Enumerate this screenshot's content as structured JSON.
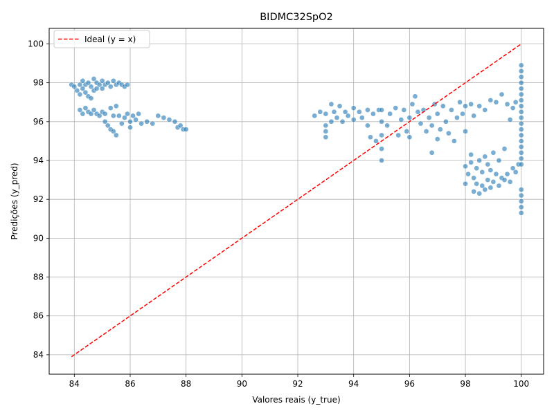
{
  "chart_data": {
    "type": "scatter",
    "title": "BIDMC32SpO2",
    "xlabel": "Valores reais (y_true)",
    "ylabel": "Predições (y_pred)",
    "xlim": [
      83.1,
      100.8
    ],
    "ylim": [
      83.0,
      100.8
    ],
    "xticks": [
      84,
      86,
      88,
      90,
      92,
      94,
      96,
      98,
      100
    ],
    "yticks": [
      84,
      86,
      88,
      90,
      92,
      94,
      96,
      98,
      100
    ],
    "grid": true,
    "legend_position": "top-left",
    "colors": {
      "points": "#1f77b4",
      "ideal_line": "#ff0000"
    },
    "series": [
      {
        "kind": "scatter",
        "points": [
          [
            83.9,
            97.9
          ],
          [
            84.0,
            97.8
          ],
          [
            84.1,
            97.6
          ],
          [
            84.2,
            97.9
          ],
          [
            84.2,
            97.4
          ],
          [
            84.3,
            98.1
          ],
          [
            84.3,
            97.7
          ],
          [
            84.4,
            97.5
          ],
          [
            84.4,
            97.9
          ],
          [
            84.5,
            98.0
          ],
          [
            84.5,
            97.3
          ],
          [
            84.6,
            97.8
          ],
          [
            84.6,
            97.2
          ],
          [
            84.7,
            98.2
          ],
          [
            84.7,
            97.6
          ],
          [
            84.8,
            98.0
          ],
          [
            84.8,
            97.7
          ],
          [
            84.9,
            97.9
          ],
          [
            85.0,
            97.7
          ],
          [
            85.0,
            98.1
          ],
          [
            85.1,
            97.9
          ],
          [
            85.2,
            98.0
          ],
          [
            85.3,
            97.8
          ],
          [
            85.4,
            98.1
          ],
          [
            85.5,
            97.9
          ],
          [
            85.6,
            98.0
          ],
          [
            85.7,
            97.9
          ],
          [
            85.8,
            97.8
          ],
          [
            85.9,
            97.9
          ],
          [
            84.2,
            96.6
          ],
          [
            84.3,
            96.4
          ],
          [
            84.4,
            96.7
          ],
          [
            84.5,
            96.5
          ],
          [
            84.6,
            96.4
          ],
          [
            84.7,
            96.6
          ],
          [
            84.8,
            96.4
          ],
          [
            84.9,
            96.3
          ],
          [
            85.0,
            96.5
          ],
          [
            85.1,
            96.4
          ],
          [
            85.1,
            96.0
          ],
          [
            85.2,
            95.8
          ],
          [
            85.3,
            96.7
          ],
          [
            85.3,
            95.6
          ],
          [
            85.4,
            96.3
          ],
          [
            85.4,
            95.5
          ],
          [
            85.5,
            96.8
          ],
          [
            85.5,
            95.3
          ],
          [
            85.6,
            96.3
          ],
          [
            85.7,
            95.9
          ],
          [
            85.8,
            96.2
          ],
          [
            85.9,
            96.4
          ],
          [
            86.0,
            96.0
          ],
          [
            86.0,
            95.7
          ],
          [
            86.1,
            96.3
          ],
          [
            86.2,
            96.1
          ],
          [
            86.3,
            96.4
          ],
          [
            86.4,
            95.9
          ],
          [
            86.6,
            96.0
          ],
          [
            86.8,
            95.9
          ],
          [
            87.0,
            96.3
          ],
          [
            87.2,
            96.2
          ],
          [
            87.4,
            96.1
          ],
          [
            87.6,
            96.0
          ],
          [
            87.7,
            95.7
          ],
          [
            87.8,
            95.8
          ],
          [
            87.9,
            95.6
          ],
          [
            88.0,
            95.6
          ],
          [
            92.6,
            96.3
          ],
          [
            92.8,
            96.5
          ],
          [
            93.0,
            96.4
          ],
          [
            93.0,
            95.2
          ],
          [
            93.0,
            95.5
          ],
          [
            93.0,
            95.8
          ],
          [
            93.2,
            96.9
          ],
          [
            93.2,
            96.0
          ],
          [
            93.3,
            96.5
          ],
          [
            93.4,
            96.2
          ],
          [
            93.5,
            96.8
          ],
          [
            93.6,
            96.0
          ],
          [
            93.7,
            96.5
          ],
          [
            93.8,
            96.3
          ],
          [
            94.0,
            96.7
          ],
          [
            94.0,
            96.1
          ],
          [
            94.2,
            96.5
          ],
          [
            94.3,
            96.2
          ],
          [
            94.5,
            96.6
          ],
          [
            94.5,
            95.8
          ],
          [
            94.6,
            95.2
          ],
          [
            94.7,
            96.4
          ],
          [
            94.8,
            95.0
          ],
          [
            94.9,
            96.6
          ],
          [
            95.0,
            94.0
          ],
          [
            95.0,
            94.6
          ],
          [
            95.0,
            95.3
          ],
          [
            95.0,
            96.0
          ],
          [
            95.0,
            96.6
          ],
          [
            95.2,
            95.8
          ],
          [
            95.3,
            96.4
          ],
          [
            95.5,
            96.7
          ],
          [
            95.6,
            95.3
          ],
          [
            95.7,
            96.1
          ],
          [
            95.8,
            96.6
          ],
          [
            95.9,
            95.5
          ],
          [
            96.0,
            96.2
          ],
          [
            96.0,
            95.2
          ],
          [
            96.1,
            96.9
          ],
          [
            96.2,
            97.3
          ],
          [
            96.3,
            96.5
          ],
          [
            96.4,
            95.9
          ],
          [
            96.5,
            96.6
          ],
          [
            96.6,
            95.5
          ],
          [
            96.7,
            96.2
          ],
          [
            96.8,
            94.4
          ],
          [
            96.8,
            95.8
          ],
          [
            96.9,
            96.9
          ],
          [
            97.0,
            95.1
          ],
          [
            97.0,
            96.4
          ],
          [
            97.1,
            95.6
          ],
          [
            97.2,
            96.8
          ],
          [
            97.3,
            96.0
          ],
          [
            97.4,
            95.4
          ],
          [
            97.5,
            96.6
          ],
          [
            97.6,
            95.0
          ],
          [
            97.7,
            96.2
          ],
          [
            97.8,
            97.0
          ],
          [
            97.9,
            96.4
          ],
          [
            98.0,
            95.5
          ],
          [
            98.0,
            96.8
          ],
          [
            98.2,
            96.9
          ],
          [
            98.3,
            96.3
          ],
          [
            98.5,
            96.8
          ],
          [
            98.7,
            96.6
          ],
          [
            98.9,
            97.1
          ],
          [
            99.1,
            97.0
          ],
          [
            99.3,
            97.4
          ],
          [
            99.5,
            96.9
          ],
          [
            99.6,
            96.1
          ],
          [
            99.7,
            96.7
          ],
          [
            99.8,
            97.0
          ],
          [
            98.0,
            93.7
          ],
          [
            98.0,
            92.8
          ],
          [
            98.1,
            93.3
          ],
          [
            98.2,
            94.3
          ],
          [
            98.2,
            93.9
          ],
          [
            98.3,
            92.4
          ],
          [
            98.3,
            93.1
          ],
          [
            98.4,
            92.8
          ],
          [
            98.4,
            93.6
          ],
          [
            98.5,
            92.3
          ],
          [
            98.5,
            94.0
          ],
          [
            98.6,
            92.7
          ],
          [
            98.6,
            93.4
          ],
          [
            98.7,
            94.2
          ],
          [
            98.7,
            92.5
          ],
          [
            98.8,
            93.8
          ],
          [
            98.8,
            93.0
          ],
          [
            98.9,
            92.6
          ],
          [
            98.9,
            93.5
          ],
          [
            99.0,
            94.4
          ],
          [
            99.0,
            92.9
          ],
          [
            99.1,
            93.3
          ],
          [
            99.2,
            92.7
          ],
          [
            99.2,
            94.0
          ],
          [
            99.3,
            93.1
          ],
          [
            99.4,
            94.6
          ],
          [
            99.4,
            93.0
          ],
          [
            99.5,
            93.3
          ],
          [
            99.6,
            92.9
          ],
          [
            99.7,
            93.6
          ],
          [
            99.8,
            93.4
          ],
          [
            99.9,
            93.8
          ],
          [
            100.0,
            91.3
          ],
          [
            100.0,
            91.6
          ],
          [
            100.0,
            91.9
          ],
          [
            100.0,
            92.2
          ],
          [
            100.0,
            92.5
          ],
          [
            100.0,
            93.8
          ],
          [
            100.0,
            94.1
          ],
          [
            100.0,
            94.4
          ],
          [
            100.0,
            94.7
          ],
          [
            100.0,
            95.0
          ],
          [
            100.0,
            95.3
          ],
          [
            100.0,
            95.6
          ],
          [
            100.0,
            95.9
          ],
          [
            100.0,
            96.2
          ],
          [
            100.0,
            96.5
          ],
          [
            100.0,
            96.8
          ],
          [
            100.0,
            97.1
          ],
          [
            100.0,
            97.4
          ],
          [
            100.0,
            97.7
          ],
          [
            100.0,
            98.0
          ],
          [
            100.0,
            98.3
          ],
          [
            100.0,
            98.6
          ],
          [
            100.0,
            98.9
          ]
        ]
      },
      {
        "kind": "line",
        "name": "Ideal (y = x)",
        "style": "dashed",
        "x": [
          83.9,
          100.0
        ],
        "y": [
          83.9,
          100.0
        ]
      }
    ]
  }
}
